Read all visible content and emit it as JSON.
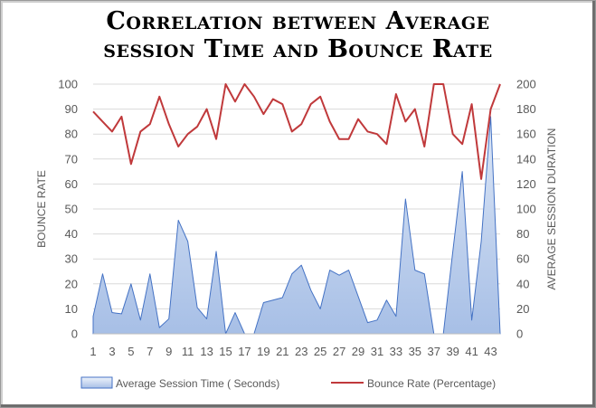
{
  "chart_data": {
    "type": "area",
    "title_line1": "Correlation between Average",
    "title_line2": "session Time and Bounce Rate",
    "ylabel": "BOUNCE RATE",
    "y2label": "AVERAGE SESSION DURATION",
    "ylim": [
      0,
      100
    ],
    "y2lim": [
      0,
      200
    ],
    "yticks": [
      0,
      10,
      20,
      30,
      40,
      50,
      60,
      70,
      80,
      90,
      100
    ],
    "y2ticks": [
      0,
      20,
      40,
      60,
      80,
      100,
      120,
      140,
      160,
      180,
      200
    ],
    "x": [
      1,
      2,
      3,
      4,
      5,
      6,
      7,
      8,
      9,
      10,
      11,
      12,
      13,
      14,
      15,
      16,
      17,
      18,
      19,
      20,
      21,
      22,
      23,
      24,
      25,
      26,
      27,
      28,
      29,
      30,
      31,
      32,
      33,
      34,
      35,
      36,
      37,
      38,
      39,
      40,
      41,
      42,
      43,
      44
    ],
    "xticks": [
      1,
      3,
      5,
      7,
      9,
      11,
      13,
      15,
      17,
      19,
      21,
      23,
      25,
      27,
      29,
      31,
      33,
      35,
      37,
      39,
      41,
      43
    ],
    "grid": true,
    "legend_position": "bottom",
    "series": [
      {
        "name": "Average Session Time ( Seconds)",
        "kind": "area",
        "axis": "secondary",
        "color": "#4472c4",
        "values": [
          14,
          48,
          17,
          16,
          40,
          11,
          48,
          5,
          12,
          91,
          74,
          21,
          12,
          66,
          0,
          17,
          0,
          0,
          25,
          27,
          29,
          48,
          55,
          35,
          20,
          51,
          47,
          51,
          30,
          9,
          11,
          27,
          14,
          108,
          51,
          48,
          0,
          0,
          66,
          130,
          11,
          74,
          174,
          0
        ]
      },
      {
        "name": "Bounce Rate (Percentage)",
        "kind": "line",
        "axis": "primary",
        "color": "#c0393b",
        "values": [
          89,
          85,
          81,
          87,
          68,
          81,
          84,
          95,
          84,
          75,
          80,
          83,
          90,
          78,
          100,
          93,
          100,
          95,
          88,
          94,
          92,
          81,
          84,
          92,
          95,
          85,
          78,
          78,
          86,
          81,
          80,
          76,
          96,
          85,
          90,
          75,
          100,
          100,
          80,
          76,
          92,
          62,
          90,
          100
        ]
      }
    ]
  }
}
